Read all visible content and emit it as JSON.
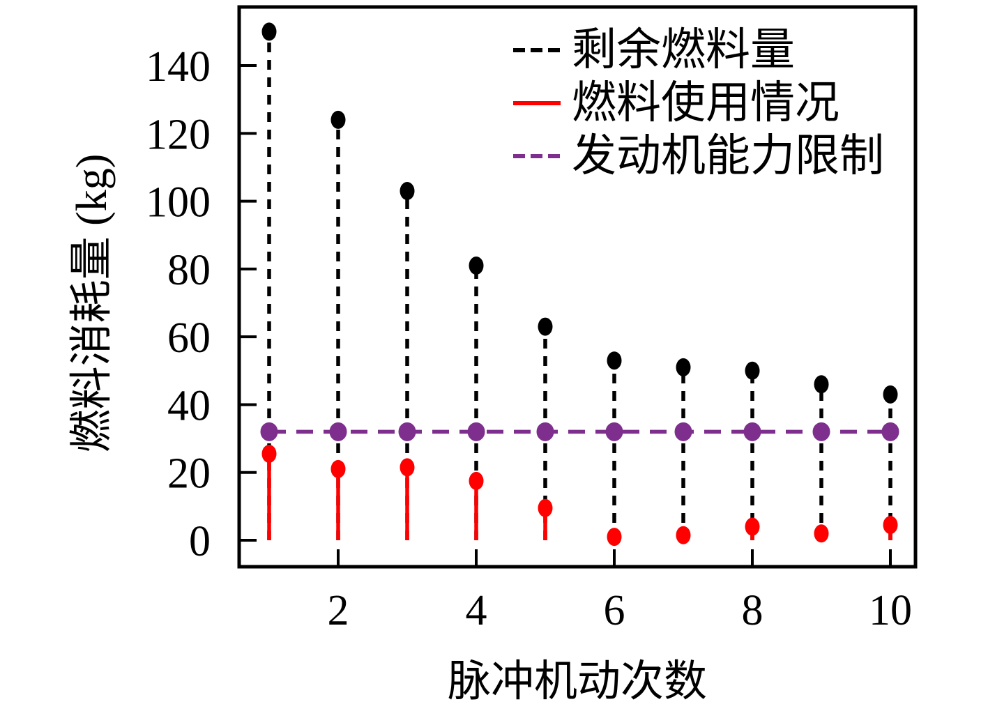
{
  "figure": {
    "background_color": "#ffffff",
    "axes_color": "#000000"
  },
  "chart_data": {
    "type": "stem",
    "x": [
      1,
      2,
      3,
      4,
      5,
      6,
      7,
      8,
      9,
      10
    ],
    "series": [
      {
        "key": "remaining-fuel",
        "name": "剩余燃料量",
        "type": "stem",
        "line_style": "dashed",
        "color": "#000000",
        "values": [
          150,
          124,
          103,
          81,
          63,
          53,
          51,
          50,
          46,
          43
        ]
      },
      {
        "key": "fuel-used",
        "name": "燃料使用情况",
        "type": "stem",
        "line_style": "solid",
        "color": "#fe0000",
        "values": [
          25.5,
          21,
          21.5,
          17.5,
          9.5,
          1,
          1.5,
          4,
          2,
          4.5
        ]
      },
      {
        "key": "engine-limit",
        "name": "发动机能力限制",
        "type": "hline",
        "line_style": "dashed",
        "color": "#7e2f8e",
        "value": 32,
        "markers_at_each_x": true
      }
    ],
    "xlabel": "脉冲机动次数",
    "ylabel": "燃料消耗量 (kg)",
    "x_ticks": [
      2,
      4,
      6,
      8,
      10
    ],
    "y_ticks": [
      0,
      20,
      40,
      60,
      80,
      100,
      120,
      140
    ],
    "xlim": [
      0.57,
      10.36
    ],
    "ylim": [
      -7.8,
      157.5
    ],
    "grid": false,
    "legend_position": "top-right",
    "tick_direction": "in"
  }
}
